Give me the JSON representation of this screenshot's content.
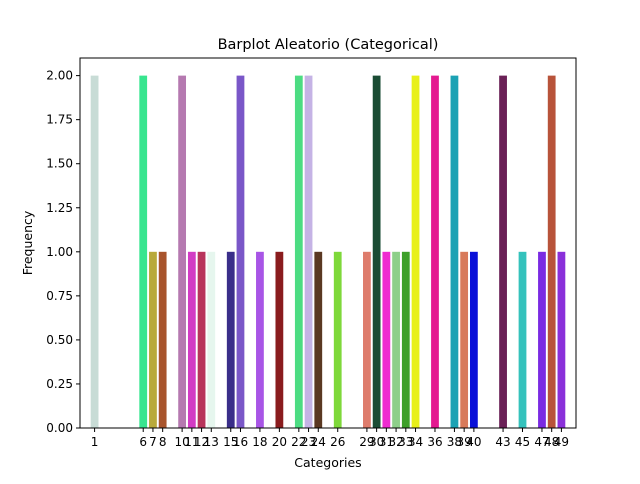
{
  "chart_data": {
    "type": "bar",
    "title": "Barplot Aleatorio (Categorical)",
    "xlabel": "Categories",
    "ylabel": "Frequency",
    "ylim": [
      0,
      2.1
    ],
    "xlim": [
      -0.5,
      50.5
    ],
    "grid": false,
    "yticks": [
      0.0,
      0.25,
      0.5,
      0.75,
      1.0,
      1.25,
      1.5,
      1.75,
      2.0
    ],
    "ytick_labels": [
      "0.00",
      "0.25",
      "0.50",
      "0.75",
      "1.00",
      "1.25",
      "1.50",
      "1.75",
      "2.00"
    ],
    "categories": [
      "1",
      "6",
      "7",
      "8",
      "10",
      "11",
      "12",
      "13",
      "15",
      "16",
      "18",
      "20",
      "22",
      "23",
      "24",
      "26",
      "29",
      "30",
      "31",
      "32",
      "33",
      "34",
      "36",
      "38",
      "39",
      "40",
      "43",
      "45",
      "47",
      "48",
      "49"
    ],
    "x": [
      1,
      6,
      7,
      8,
      10,
      11,
      12,
      13,
      15,
      16,
      18,
      20,
      22,
      23,
      24,
      26,
      29,
      30,
      31,
      32,
      33,
      34,
      36,
      38,
      39,
      40,
      43,
      45,
      47,
      48,
      49
    ],
    "values": [
      2,
      2,
      1,
      1,
      2,
      1,
      1,
      1,
      1,
      2,
      1,
      1,
      2,
      2,
      1,
      1,
      1,
      2,
      1,
      1,
      1,
      2,
      2,
      2,
      1,
      1,
      2,
      1,
      1,
      2,
      1
    ],
    "colors": [
      "#c8dcd6",
      "#38e58f",
      "#b8a93a",
      "#a8542c",
      "#b579b0",
      "#d23bc4",
      "#b8345b",
      "#e6f6ee",
      "#3a2e8a",
      "#7a57c8",
      "#a855e6",
      "#8a1c1e",
      "#4cdc82",
      "#c5b3e5",
      "#5a3822",
      "#7ed83a",
      "#de7c6c",
      "#1a4c34",
      "#ef2bd0",
      "#8ecf8a",
      "#3ea02a",
      "#e8f01a",
      "#e41a90",
      "#1ca2b4",
      "#d87a5a",
      "#0a10d8",
      "#6a2056",
      "#34c2bc",
      "#7a2ae2",
      "#b8533a",
      "#8a30da"
    ]
  }
}
